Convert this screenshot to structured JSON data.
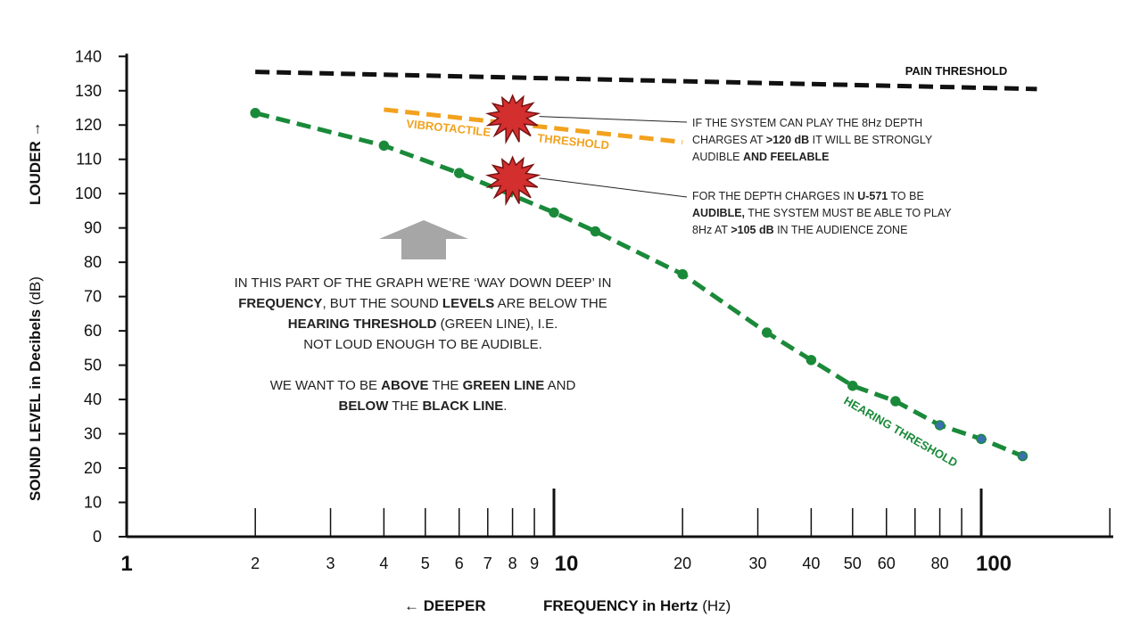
{
  "chart_data": {
    "type": "line",
    "xscale": "log",
    "xlim": [
      1,
      150
    ],
    "ylim": [
      0,
      140
    ],
    "grid": false,
    "ylabel": "SOUND LEVEL in Decibels (dB)",
    "ylabel_bold": "SOUND LEVEL in Decibels",
    "ylabel_unit": "(dB)",
    "louder_label": "LOUDER →",
    "xlabel_bold": "FREQUENCY in Hertz",
    "xlabel_unit": "(Hz)",
    "deeper_label": "← DEEPER",
    "y_ticks": [
      0,
      10,
      20,
      30,
      40,
      50,
      60,
      70,
      80,
      90,
      100,
      110,
      120,
      130,
      140
    ],
    "x_tick_labels": [
      {
        "value": 1,
        "label": "1",
        "major": true
      },
      {
        "value": 2,
        "label": "2",
        "major": false
      },
      {
        "value": 3,
        "label": "3",
        "major": false
      },
      {
        "value": 4,
        "label": "4",
        "major": false
      },
      {
        "value": 5,
        "label": "5",
        "major": false
      },
      {
        "value": 6,
        "label": "6",
        "major": false
      },
      {
        "value": 7,
        "label": "7",
        "major": false
      },
      {
        "value": 8,
        "label": "8",
        "major": false
      },
      {
        "value": 9,
        "label": "9",
        "major": false
      },
      {
        "value": 10,
        "label": "10",
        "major": true
      },
      {
        "value": 20,
        "label": "20",
        "major": false
      },
      {
        "value": 30,
        "label": "30",
        "major": false
      },
      {
        "value": 40,
        "label": "40",
        "major": false
      },
      {
        "value": 50,
        "label": "50",
        "major": false
      },
      {
        "value": 60,
        "label": "60",
        "major": false
      },
      {
        "value": 80,
        "label": "80",
        "major": false
      },
      {
        "value": 100,
        "label": "100",
        "major": true
      }
    ],
    "x_tick_marks": [
      2,
      3,
      4,
      5,
      6,
      7,
      8,
      9,
      10,
      20,
      30,
      40,
      50,
      60,
      70,
      80,
      90,
      100,
      200
    ],
    "series": [
      {
        "name": "HEARING THRESHOLD",
        "color": "#1a8a3a",
        "style": "dashed",
        "markers": true,
        "x": [
          2,
          4,
          6,
          10,
          12.5,
          20,
          31.5,
          40,
          50,
          63,
          80,
          100,
          125
        ],
        "y": [
          123.5,
          114,
          106,
          94.5,
          89,
          76.5,
          59.5,
          51.5,
          44,
          39.5,
          32.5,
          28.5,
          23.5
        ]
      },
      {
        "name": "PAIN THRESHOLD",
        "color": "#111111",
        "style": "dashed",
        "markers": false,
        "x": [
          2,
          135
        ],
        "y": [
          135.5,
          130.5
        ]
      },
      {
        "name": "VIBROTACTILE THRESHOLD",
        "label_part1": "VIBROTACTILE",
        "label_part2": "THRESHOLD",
        "color": "#f2a21e",
        "style": "dashed",
        "markers": false,
        "x": [
          4,
          20
        ],
        "y": [
          124.5,
          115
        ]
      }
    ],
    "starbursts": [
      {
        "x": 8,
        "y": 122.5,
        "color": "#d32f2f"
      },
      {
        "x": 8,
        "y": 104.5,
        "color": "#d32f2f"
      }
    ],
    "arrow_color": "#a6a6a6"
  },
  "annotations": {
    "note_120": {
      "line1": "IF THE SYSTEM CAN PLAY THE 8Hz DEPTH",
      "line2a": "CHARGES AT ",
      "line2b": ">120 dB",
      "line2c": " IT WILL BE STRONGLY",
      "line3a": "AUDIBLE ",
      "line3b": "AND FEELABLE"
    },
    "note_105": {
      "line1a": "FOR THE DEPTH CHARGES IN ",
      "line1b": "U-571",
      "line1c": "  TO BE",
      "line2a": "AUDIBLE,",
      "line2b": " THE SYSTEM MUST  BE ABLE TO PLAY",
      "line3a": "8Hz AT ",
      "line3b": ">105 dB",
      "line3c": " IN THE AUDIENCE ZONE"
    },
    "center": {
      "l1": "IN THIS PART OF THE GRAPH WE’RE ‘WAY DOWN DEEP’ IN",
      "l2a": "FREQUENCY",
      "l2b": ", BUT THE SOUND ",
      "l2c": "LEVELS",
      "l2d": " ARE BELOW THE",
      "l3a": "HEARING THRESHOLD",
      "l3b": " (GREEN LINE), I.E.",
      "l4": "NOT LOUD ENOUGH TO BE AUDIBLE.",
      "l5a": "WE WANT TO BE ",
      "l5b": "ABOVE",
      "l5c": " THE ",
      "l5d": "GREEN LINE",
      "l5e": " AND",
      "l6a": "BELOW",
      "l6b": " THE ",
      "l6c": "BLACK LINE",
      "l6d": "."
    }
  }
}
